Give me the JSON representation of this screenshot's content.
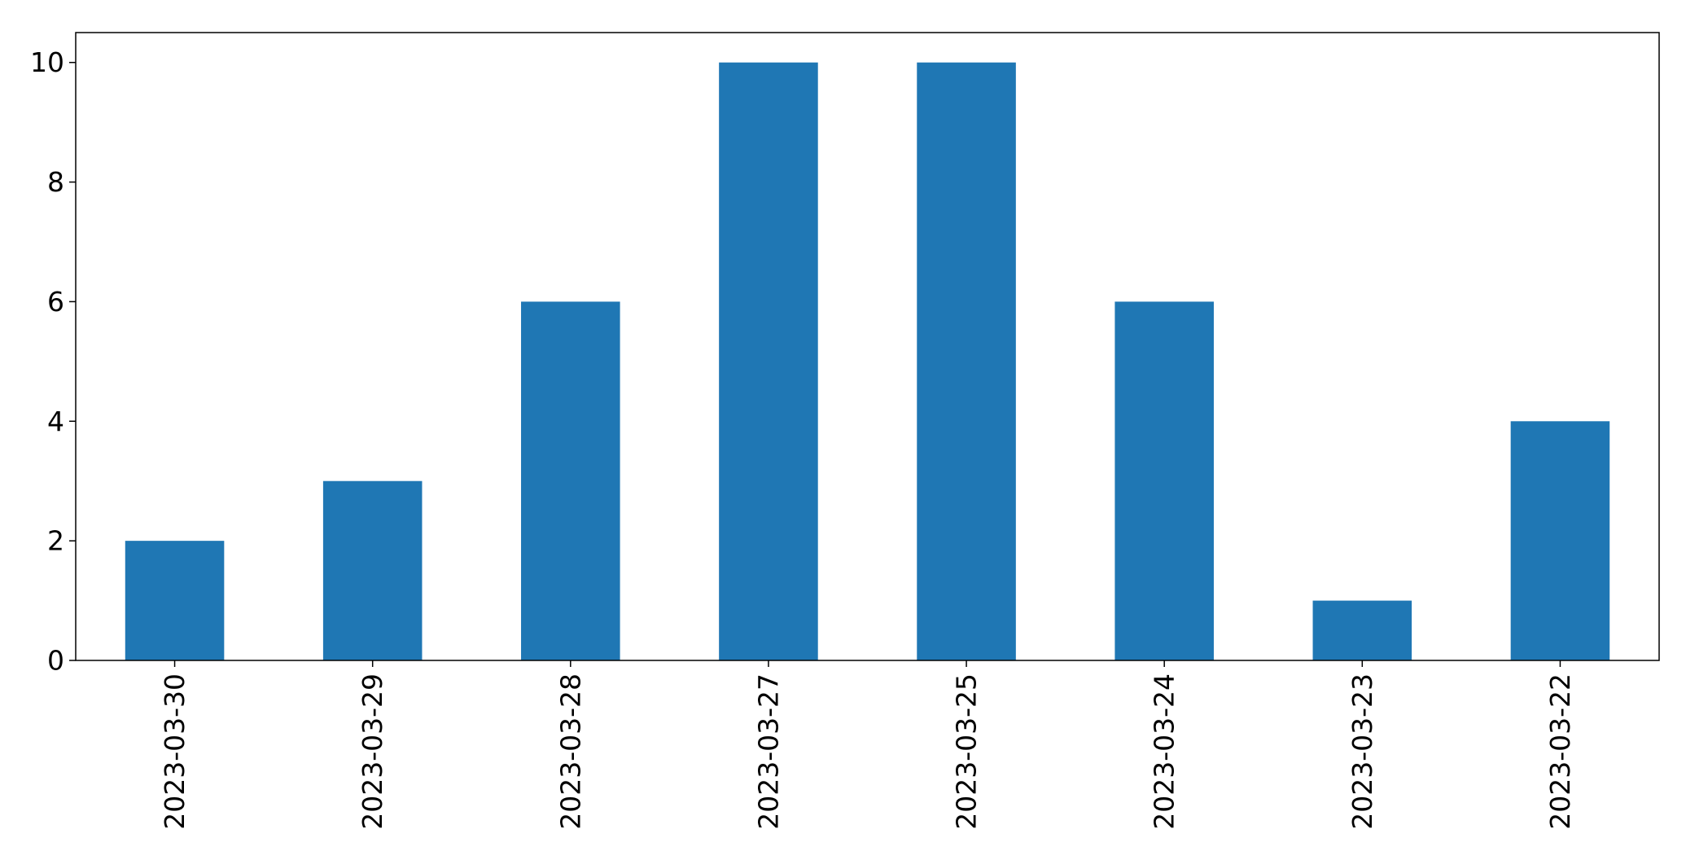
{
  "chart_data": {
    "type": "bar",
    "categories": [
      "2023-03-30",
      "2023-03-29",
      "2023-03-28",
      "2023-03-27",
      "2023-03-25",
      "2023-03-24",
      "2023-03-23",
      "2023-03-22"
    ],
    "values": [
      2,
      3,
      6,
      10,
      10,
      6,
      1,
      4
    ],
    "title": "",
    "xlabel": "",
    "ylabel": "",
    "ylim": [
      0,
      10.5
    ],
    "yticks": [
      0,
      2,
      4,
      6,
      8,
      10
    ],
    "grid": false,
    "bar_color": "#1f77b4"
  }
}
